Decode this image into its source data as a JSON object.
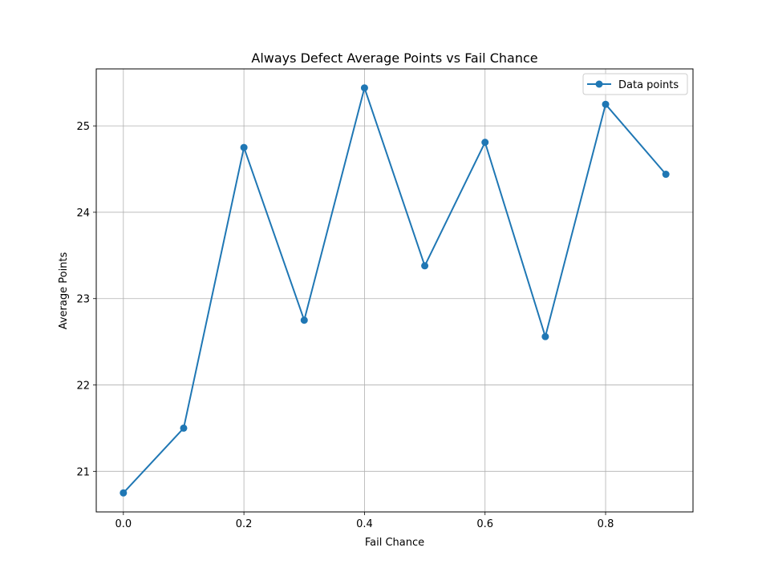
{
  "chart_data": {
    "type": "line",
    "title": "Always Defect Average Points vs Fail Chance",
    "xlabel": "Fail Chance",
    "ylabel": "Average Points",
    "x": [
      0.0,
      0.1,
      0.2,
      0.3,
      0.4,
      0.5,
      0.6,
      0.7,
      0.8,
      0.9
    ],
    "series": [
      {
        "name": "Data points",
        "color": "#1f77b4",
        "marker": "circle",
        "values": [
          20.75,
          21.5,
          24.75,
          22.75,
          25.44,
          23.38,
          24.81,
          22.56,
          25.25,
          24.44
        ]
      }
    ],
    "xlim": [
      -0.045,
      0.945
    ],
    "ylim": [
      20.53,
      25.66
    ],
    "xticks": [
      0.0,
      0.2,
      0.4,
      0.6,
      0.8
    ],
    "xtick_labels": [
      "0.0",
      "0.2",
      "0.4",
      "0.6",
      "0.8"
    ],
    "yticks": [
      21,
      22,
      23,
      24,
      25
    ],
    "ytick_labels": [
      "21",
      "22",
      "23",
      "24",
      "25"
    ],
    "grid": true,
    "legend_position": "upper right"
  }
}
